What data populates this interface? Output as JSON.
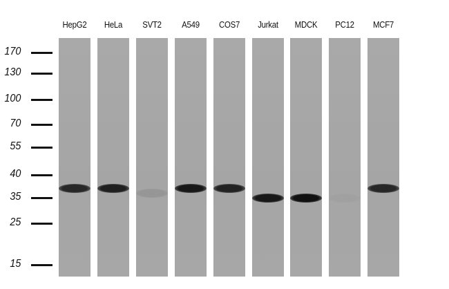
{
  "lanes": [
    {
      "label": "HepG2",
      "band_kda": 37,
      "intensity": 0.85
    },
    {
      "label": "HeLa",
      "band_kda": 37,
      "intensity": 0.9
    },
    {
      "label": "SVT2",
      "band_kda": 36,
      "intensity": 0.1
    },
    {
      "label": "A549",
      "band_kda": 37,
      "intensity": 0.95
    },
    {
      "label": "COS7",
      "band_kda": 37,
      "intensity": 0.88
    },
    {
      "label": "Jurkat",
      "band_kda": 35,
      "intensity": 0.95
    },
    {
      "label": "MDCK",
      "band_kda": 35,
      "intensity": 1.0
    },
    {
      "label": "PC12",
      "band_kda": 35,
      "intensity": 0.03
    },
    {
      "label": "MCF7",
      "band_kda": 37,
      "intensity": 0.85
    }
  ],
  "markers": [
    "170",
    "130",
    "100",
    "70",
    "55",
    "40",
    "35",
    "25",
    "15"
  ],
  "colors": {
    "membrane": "#a8a8a8",
    "band": "#111111",
    "marker": "#111111"
  }
}
